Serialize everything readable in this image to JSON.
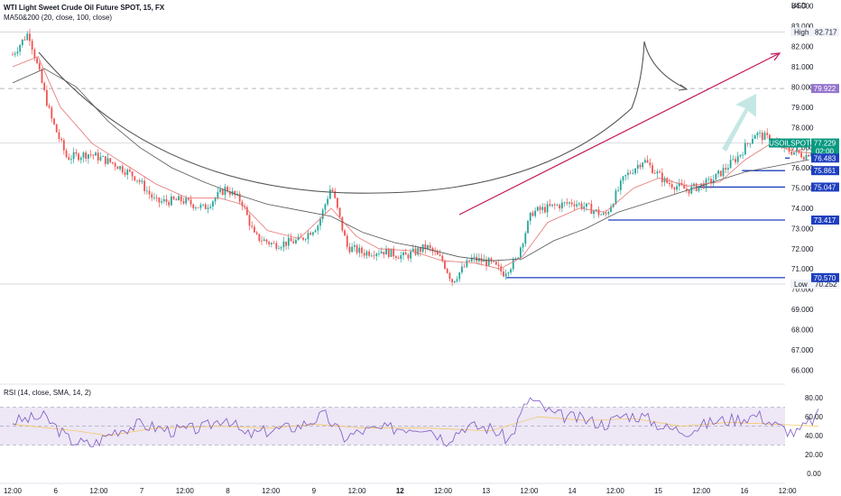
{
  "legend": {
    "title": "WTI Light Sweet Crude Oil Future SPOT, 15, FX",
    "indicator": "MA50&200 (20, close, 100, close)",
    "rsi": "RSI (14, close, SMA, 14, 2)"
  },
  "currency": "USD",
  "colors": {
    "candle_up": "#26a69a",
    "candle_down": "#ef5350",
    "ma_fast": "#e57373",
    "ma_slow": "#555555",
    "level_line": "#1e3fbf",
    "level_tag": "#1e3fbf",
    "trend_arrow": "#c2185b",
    "target_tag": "#9575cd",
    "last_tag": "#089981",
    "rsi_line": "#7e57c2",
    "rsi_band": "#ede7f6"
  },
  "chart_data": {
    "type": "candlestick",
    "symbol": "USOILSPOT",
    "ylim": [
      65.3,
      84.3
    ],
    "y_ticks": [
      "84.000",
      "83.000",
      "82.000",
      "81.000",
      "80.000",
      "79.000",
      "78.000",
      "77.000",
      "76.000",
      "75.000",
      "74.000",
      "73.000",
      "72.000",
      "71.000",
      "70.000",
      "69.000",
      "68.000",
      "67.000",
      "66.000"
    ],
    "x_ticks": [
      "12:00",
      "6",
      "12:00",
      "7",
      "12:00",
      "8",
      "12:00",
      "9",
      "12:00",
      "12",
      "12:00",
      "13",
      "12:00",
      "14",
      "12:00",
      "15",
      "12:00",
      "16",
      "12:00"
    ],
    "x_bold": [
      "12"
    ],
    "high": {
      "label": "High",
      "value": "82.717"
    },
    "low": {
      "label": "Low",
      "value": "70.252"
    },
    "last": {
      "symbol": "USOILSPOT",
      "value": "77.229",
      "countdown": "02:00"
    },
    "target": {
      "value": "79.922"
    },
    "levels": [
      "76.483",
      "75.861",
      "75.047",
      "73.417",
      "70.570"
    ],
    "price_path": [
      [
        0,
        81.6
      ],
      [
        0.5,
        82.7
      ],
      [
        1.2,
        78.5
      ],
      [
        1.7,
        76.5
      ],
      [
        2.4,
        76.7
      ],
      [
        3.2,
        76.2
      ],
      [
        3.9,
        75.5
      ],
      [
        4.5,
        74.3
      ],
      [
        5.3,
        74.4
      ],
      [
        6.0,
        74.0
      ],
      [
        6.7,
        75.0
      ],
      [
        7.2,
        74.3
      ],
      [
        7.6,
        72.6
      ],
      [
        8.2,
        72.2
      ],
      [
        9.0,
        72.4
      ],
      [
        9.6,
        73.2
      ],
      [
        10.0,
        75.1
      ],
      [
        10.5,
        72.1
      ],
      [
        11.0,
        71.8
      ],
      [
        11.6,
        71.9
      ],
      [
        12.3,
        71.6
      ],
      [
        13.0,
        72.1
      ],
      [
        13.5,
        71.4
      ],
      [
        13.8,
        70.4
      ],
      [
        14.4,
        71.5
      ],
      [
        15.0,
        71.3
      ],
      [
        15.4,
        70.8
      ],
      [
        15.8,
        71.4
      ],
      [
        16.3,
        73.8
      ],
      [
        17.0,
        74.1
      ],
      [
        17.6,
        74.3
      ],
      [
        18.1,
        74.0
      ],
      [
        18.6,
        73.6
      ],
      [
        19.2,
        75.5
      ],
      [
        19.8,
        76.4
      ],
      [
        20.5,
        75.3
      ],
      [
        21.2,
        74.9
      ],
      [
        21.9,
        75.3
      ],
      [
        22.4,
        76.0
      ],
      [
        22.8,
        76.6
      ],
      [
        23.3,
        77.7
      ],
      [
        23.8,
        77.4
      ],
      [
        24.3,
        76.9
      ],
      [
        24.9,
        76.6
      ],
      [
        25.3,
        77.2
      ]
    ],
    "ma_fast": [
      [
        0,
        81.0
      ],
      [
        0.8,
        81.5
      ],
      [
        1.5,
        79.0
      ],
      [
        2.5,
        77.2
      ],
      [
        3.5,
        76.2
      ],
      [
        4.5,
        75.2
      ],
      [
        5.5,
        74.5
      ],
      [
        6.5,
        74.5
      ],
      [
        7.2,
        74.2
      ],
      [
        8.0,
        72.9
      ],
      [
        9.0,
        72.5
      ],
      [
        10.0,
        74.0
      ],
      [
        10.8,
        72.6
      ],
      [
        11.5,
        72.0
      ],
      [
        12.5,
        71.9
      ],
      [
        13.5,
        71.4
      ],
      [
        14.5,
        71.3
      ],
      [
        15.3,
        71.0
      ],
      [
        16.0,
        71.6
      ],
      [
        16.8,
        73.3
      ],
      [
        17.8,
        74.0
      ],
      [
        18.6,
        73.8
      ],
      [
        19.5,
        75.0
      ],
      [
        20.3,
        75.5
      ],
      [
        21.2,
        75.1
      ],
      [
        22.2,
        75.3
      ],
      [
        23.0,
        76.4
      ],
      [
        23.8,
        77.2
      ],
      [
        24.6,
        76.8
      ],
      [
        25.3,
        76.7
      ]
    ],
    "ma_slow": [
      [
        0,
        80.2
      ],
      [
        1.0,
        80.9
      ],
      [
        2.0,
        80.0
      ],
      [
        3.0,
        78.3
      ],
      [
        4.0,
        77.0
      ],
      [
        5.0,
        76.0
      ],
      [
        6.0,
        75.3
      ],
      [
        7.0,
        74.7
      ],
      [
        8.0,
        74.2
      ],
      [
        9.0,
        73.9
      ],
      [
        10.0,
        73.6
      ],
      [
        11.0,
        72.8
      ],
      [
        12.0,
        72.3
      ],
      [
        13.0,
        72.0
      ],
      [
        14.0,
        71.6
      ],
      [
        15.0,
        71.4
      ],
      [
        16.0,
        71.5
      ],
      [
        17.0,
        72.4
      ],
      [
        18.0,
        73.0
      ],
      [
        19.0,
        73.8
      ],
      [
        20.0,
        74.3
      ],
      [
        21.0,
        74.8
      ],
      [
        22.0,
        75.3
      ],
      [
        23.0,
        75.8
      ],
      [
        24.0,
        76.1
      ],
      [
        25.0,
        76.4
      ]
    ],
    "rsi": {
      "ylim": [
        -5,
        85
      ],
      "ticks": [
        "80.00",
        "60.00",
        "40.00",
        "20.00",
        "0.00"
      ],
      "band": [
        30,
        70
      ],
      "mid": 50,
      "values": [
        [
          0,
          55
        ],
        [
          1.0,
          60
        ],
        [
          1.8,
          35
        ],
        [
          2.5,
          30
        ],
        [
          3.2,
          45
        ],
        [
          4.0,
          52
        ],
        [
          5.0,
          45
        ],
        [
          6.0,
          48
        ],
        [
          6.7,
          60
        ],
        [
          7.3,
          40
        ],
        [
          8.0,
          45
        ],
        [
          9.0,
          50
        ],
        [
          9.8,
          62
        ],
        [
          10.4,
          38
        ],
        [
          11.0,
          45
        ],
        [
          12.0,
          48
        ],
        [
          13.0,
          50
        ],
        [
          13.6,
          35
        ],
        [
          14.2,
          50
        ],
        [
          15.0,
          48
        ],
        [
          15.6,
          35
        ],
        [
          16.2,
          80
        ],
        [
          17.0,
          62
        ],
        [
          17.8,
          58
        ],
        [
          18.6,
          52
        ],
        [
          19.2,
          62
        ],
        [
          19.8,
          60
        ],
        [
          20.5,
          48
        ],
        [
          21.2,
          45
        ],
        [
          22.0,
          55
        ],
        [
          22.8,
          58
        ],
        [
          23.4,
          62
        ],
        [
          24.0,
          50
        ],
        [
          24.6,
          42
        ],
        [
          25.3,
          62
        ]
      ],
      "sma": [
        [
          0,
          52
        ],
        [
          2.0,
          45
        ],
        [
          3.0,
          40
        ],
        [
          4.5,
          48
        ],
        [
          6.5,
          50
        ],
        [
          8.0,
          48
        ],
        [
          9.5,
          52
        ],
        [
          11.0,
          48
        ],
        [
          13.0,
          48
        ],
        [
          15.0,
          45
        ],
        [
          16.5,
          60
        ],
        [
          18.0,
          56
        ],
        [
          19.5,
          58
        ],
        [
          21.0,
          50
        ],
        [
          22.5,
          54
        ],
        [
          24.0,
          52
        ],
        [
          25.3,
          50
        ]
      ]
    }
  }
}
